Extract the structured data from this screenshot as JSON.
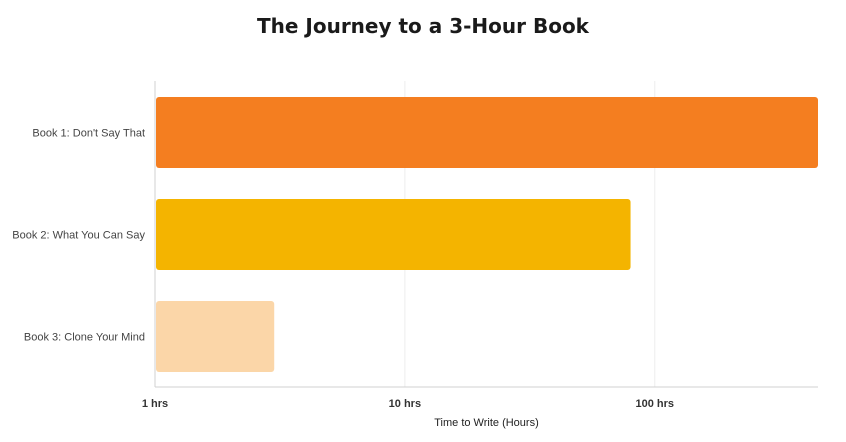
{
  "chart_data": {
    "type": "bar",
    "orientation": "horizontal",
    "title": "The Journey to a 3-Hour Book",
    "xlabel": "Time to Write (Hours)",
    "ylabel": "",
    "x_scale": "log",
    "xlim": [
      1,
      450
    ],
    "grid": true,
    "categories": [
      "Book 1: Don't Say That",
      "Book 2: What You Can Say",
      "Book 3: Clone Your Mind"
    ],
    "values": [
      450,
      80,
      3
    ],
    "colors": [
      "#F47E20",
      "#F4B400",
      "#FBD6A8"
    ],
    "x_ticks": [
      {
        "value": 1,
        "label": "1 hrs"
      },
      {
        "value": 10,
        "label": "10 hrs"
      },
      {
        "value": 100,
        "label": "100 hrs"
      }
    ]
  }
}
